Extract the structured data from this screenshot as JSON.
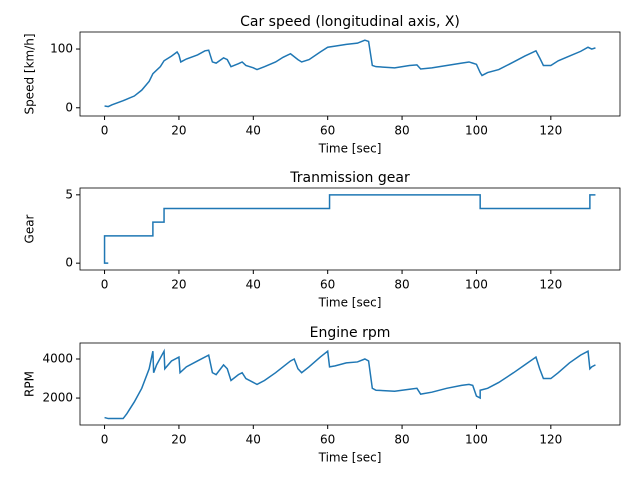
{
  "chart_data": [
    {
      "type": "line",
      "title": "Car speed (longitudinal axis, X)",
      "xlabel": "Time [sec]",
      "ylabel": "Speed [km/h]",
      "color": "#1f77b4",
      "x": [
        0,
        1,
        2,
        5,
        8,
        10,
        12,
        13,
        15,
        16,
        18,
        19.5,
        20,
        20.5,
        22,
        25,
        27,
        28,
        29,
        30,
        32,
        33,
        34,
        36,
        37,
        38,
        40,
        41,
        43,
        46,
        48,
        50,
        52,
        53,
        55,
        58,
        60,
        62,
        65,
        68,
        70,
        71,
        72,
        73,
        78,
        82,
        84,
        85,
        88,
        92,
        96,
        98,
        99,
        100,
        101,
        101.5,
        103,
        106,
        110,
        113,
        116,
        117,
        118,
        120,
        122,
        125,
        128,
        130,
        131,
        132
      ],
      "values": [
        3,
        2,
        5,
        12,
        20,
        30,
        45,
        58,
        70,
        80,
        88,
        95,
        90,
        78,
        83,
        90,
        97,
        98,
        78,
        76,
        85,
        82,
        70,
        75,
        78,
        72,
        68,
        65,
        70,
        78,
        86,
        92,
        82,
        78,
        82,
        95,
        103,
        105,
        108,
        110,
        115,
        113,
        72,
        70,
        68,
        72,
        73,
        66,
        68,
        72,
        76,
        78,
        76,
        74,
        60,
        55,
        60,
        65,
        78,
        88,
        97,
        85,
        72,
        72,
        80,
        88,
        96,
        103,
        100,
        102
      ],
      "xlim": [
        -6.6,
        138.6
      ],
      "ylim": [
        -14,
        129
      ],
      "xticks": [
        0,
        20,
        40,
        60,
        80,
        100,
        120
      ],
      "yticks": [
        0,
        100
      ]
    },
    {
      "type": "line",
      "title": "Tranmission gear",
      "xlabel": "Time [sec]",
      "ylabel": "Gear",
      "color": "#1f77b4",
      "x": [
        1,
        0,
        0,
        13,
        13,
        16,
        16,
        60.5,
        60.5,
        101,
        101,
        130.5,
        130.5,
        132
      ],
      "values": [
        0,
        0,
        2,
        2,
        3,
        3,
        4,
        4,
        5,
        5,
        4,
        4,
        5,
        5
      ],
      "xlim": [
        -6.6,
        138.6
      ],
      "ylim": [
        -0.5,
        5.5
      ],
      "xticks": [
        0,
        20,
        40,
        60,
        80,
        100,
        120
      ],
      "yticks": [
        0,
        5
      ]
    },
    {
      "type": "line",
      "title": "Engine rpm",
      "xlabel": "Time [sec]",
      "ylabel": "RPM",
      "color": "#1f77b4",
      "x": [
        0,
        1,
        5,
        6,
        8,
        10,
        12,
        13,
        13.2,
        14,
        16,
        16.2,
        18,
        20,
        20.3,
        22,
        25,
        28,
        29,
        30,
        32,
        33,
        34,
        36,
        37,
        38,
        40,
        41,
        43,
        46,
        48,
        50,
        51,
        52,
        53,
        55,
        58,
        60,
        60.5,
        62,
        65,
        68,
        70,
        71,
        72,
        73,
        78,
        82,
        84,
        85,
        88,
        92,
        96,
        98,
        99,
        100,
        101,
        101,
        103,
        106,
        110,
        113,
        116,
        117,
        118,
        120,
        122,
        125,
        128,
        130,
        130.5,
        131,
        132
      ],
      "values": [
        1000,
        950,
        950,
        1200,
        1800,
        2500,
        3500,
        4400,
        3300,
        3700,
        4400,
        3500,
        3900,
        4100,
        3300,
        3600,
        3900,
        4200,
        3300,
        3200,
        3700,
        3500,
        2900,
        3200,
        3300,
        3000,
        2800,
        2700,
        2900,
        3300,
        3600,
        3900,
        4000,
        3500,
        3300,
        3600,
        4100,
        4400,
        3600,
        3650,
        3800,
        3850,
        4000,
        3900,
        2500,
        2400,
        2350,
        2450,
        2500,
        2200,
        2300,
        2500,
        2650,
        2700,
        2650,
        2100,
        2000,
        2400,
        2500,
        2800,
        3300,
        3700,
        4100,
        3500,
        3000,
        3000,
        3300,
        3800,
        4200,
        4400,
        3500,
        3600,
        3700
      ],
      "xlim": [
        -6.6,
        138.6
      ],
      "ylim": [
        620,
        4820
      ],
      "xticks": [
        0,
        20,
        40,
        60,
        80,
        100,
        120
      ],
      "yticks": [
        2000,
        4000
      ]
    }
  ]
}
